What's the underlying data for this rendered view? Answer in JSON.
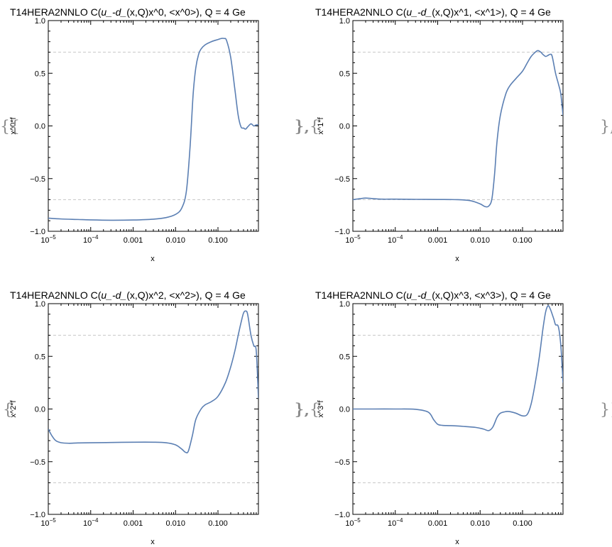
{
  "colors": {
    "series": "#5B7FB3",
    "refline": "#c8c8c8",
    "frame": "#000000"
  },
  "chart_data": [
    {
      "type": "line",
      "title": "T14HERA2NNLO C(u_-d_(x,Q)x^0, <x^0>), Q = 4 Ge",
      "title_prefix": "T14HERA2NNLO C(",
      "title_italic": "u_-d_",
      "title_suffix": "(x,Q)x^0, <x^0>), Q = 4 Ge",
      "xlabel": "x",
      "ylabel": "x^0*f",
      "xscale": "log",
      "xlim": [
        1e-05,
        0.9
      ],
      "ylim": [
        -1,
        1
      ],
      "xticks": [
        {
          "v": 1e-05,
          "label": "10",
          "exp": "−5"
        },
        {
          "v": 0.0001,
          "label": "10",
          "exp": "−4"
        },
        {
          "v": 0.001,
          "label": "0.001"
        },
        {
          "v": 0.01,
          "label": "0.010"
        },
        {
          "v": 0.1,
          "label": "0.100"
        }
      ],
      "yticks": [
        {
          "v": 1,
          "label": "1.0"
        },
        {
          "v": 0.5,
          "label": "0.5"
        },
        {
          "v": 0,
          "label": "0.0"
        },
        {
          "v": -0.5,
          "label": "−0.5"
        },
        {
          "v": -1,
          "label": "−1.0"
        }
      ],
      "reference_lines": [
        0.7,
        -0.7
      ],
      "left_brace": "{{",
      "right_brace": "},",
      "series": [
        {
          "x": [
            1e-05,
            2e-05,
            5e-05,
            0.0001,
            0.0003,
            0.001,
            0.003,
            0.006,
            0.01,
            0.014,
            0.018,
            0.022,
            0.026,
            0.03,
            0.035,
            0.04,
            0.05,
            0.07,
            0.1,
            0.12,
            0.14,
            0.16,
            0.2,
            0.25,
            0.3,
            0.35,
            0.4,
            0.45,
            0.5,
            0.6,
            0.7,
            0.8,
            0.9
          ],
          "y": [
            -0.875,
            -0.883,
            -0.888,
            -0.892,
            -0.895,
            -0.893,
            -0.885,
            -0.87,
            -0.84,
            -0.78,
            -0.62,
            -0.2,
            0.3,
            0.55,
            0.68,
            0.73,
            0.77,
            0.8,
            0.82,
            0.83,
            0.83,
            0.81,
            0.65,
            0.35,
            0.1,
            -0.01,
            -0.02,
            -0.03,
            -0.01,
            0.02,
            0.0,
            0.01,
            0.01
          ]
        }
      ]
    },
    {
      "type": "line",
      "title": "T14HERA2NNLO C(u_-d_(x,Q)x^1, <x^1>), Q = 4 Ge",
      "title_prefix": "T14HERA2NNLO C(",
      "title_italic": "u_-d_",
      "title_suffix": "(x,Q)x^1, <x^1>), Q = 4 Ge",
      "xlabel": "x",
      "ylabel": "x^1*f",
      "xscale": "log",
      "xlim": [
        1e-05,
        0.9
      ],
      "ylim": [
        -1,
        1
      ],
      "xticks": [
        {
          "v": 1e-05,
          "label": "10",
          "exp": "−5"
        },
        {
          "v": 0.0001,
          "label": "10",
          "exp": "−4"
        },
        {
          "v": 0.001,
          "label": "0.001"
        },
        {
          "v": 0.01,
          "label": "0.010"
        },
        {
          "v": 0.1,
          "label": "0.100"
        }
      ],
      "yticks": [
        {
          "v": 1,
          "label": "1.0"
        },
        {
          "v": 0.5,
          "label": "0.5"
        },
        {
          "v": 0,
          "label": "0.0"
        },
        {
          "v": -0.5,
          "label": "−0.5"
        },
        {
          "v": -1,
          "label": "−1.0"
        }
      ],
      "reference_lines": [
        0.7,
        -0.7
      ],
      "left_brace": "},{",
      "right_brace": "},",
      "series": [
        {
          "x": [
            1e-05,
            1.5e-05,
            2e-05,
            3e-05,
            5e-05,
            0.0001,
            0.0003,
            0.001,
            0.003,
            0.006,
            0.01,
            0.013,
            0.016,
            0.019,
            0.022,
            0.025,
            0.03,
            0.04,
            0.05,
            0.07,
            0.1,
            0.13,
            0.16,
            0.2,
            0.23,
            0.27,
            0.3,
            0.35,
            0.4,
            0.45,
            0.5,
            0.6,
            0.7,
            0.8,
            0.9
          ],
          "y": [
            -0.7,
            -0.69,
            -0.685,
            -0.69,
            -0.695,
            -0.695,
            -0.697,
            -0.698,
            -0.7,
            -0.71,
            -0.74,
            -0.765,
            -0.76,
            -0.69,
            -0.45,
            -0.15,
            0.1,
            0.3,
            0.38,
            0.45,
            0.52,
            0.6,
            0.66,
            0.7,
            0.715,
            0.7,
            0.68,
            0.66,
            0.67,
            0.68,
            0.66,
            0.5,
            0.4,
            0.3,
            0.1
          ]
        }
      ]
    },
    {
      "type": "line",
      "title": "T14HERA2NNLO C(u_-d_(x,Q)x^2, <x^2>), Q = 4 Ge",
      "title_prefix": "T14HERA2NNLO C(",
      "title_italic": "u_-d_",
      "title_suffix": "(x,Q)x^2, <x^2>), Q = 4 Ge",
      "xlabel": "x",
      "ylabel": "x^2*f",
      "xscale": "log",
      "xlim": [
        1e-05,
        0.9
      ],
      "ylim": [
        -1,
        1
      ],
      "xticks": [
        {
          "v": 1e-05,
          "label": "10",
          "exp": "−5"
        },
        {
          "v": 0.0001,
          "label": "10",
          "exp": "−4"
        },
        {
          "v": 0.001,
          "label": "0.001"
        },
        {
          "v": 0.01,
          "label": "0.010"
        },
        {
          "v": 0.1,
          "label": "0.100"
        }
      ],
      "yticks": [
        {
          "v": 1,
          "label": "1.0"
        },
        {
          "v": 0.5,
          "label": "0.5"
        },
        {
          "v": 0,
          "label": "0.0"
        },
        {
          "v": -0.5,
          "label": "−0.5"
        },
        {
          "v": -1,
          "label": "−1.0"
        }
      ],
      "reference_lines": [
        0.7,
        -0.7
      ],
      "left_brace": "{",
      "right_brace": "},",
      "series": [
        {
          "x": [
            1e-05,
            1.2e-05,
            1.5e-05,
            2e-05,
            3e-05,
            5e-05,
            0.0001,
            0.0003,
            0.001,
            0.003,
            0.006,
            0.01,
            0.014,
            0.017,
            0.02,
            0.025,
            0.03,
            0.04,
            0.05,
            0.07,
            0.1,
            0.15,
            0.2,
            0.25,
            0.3,
            0.35,
            0.4,
            0.45,
            0.5,
            0.6,
            0.7,
            0.8,
            0.9
          ],
          "y": [
            -0.19,
            -0.25,
            -0.3,
            -0.32,
            -0.325,
            -0.322,
            -0.32,
            -0.318,
            -0.315,
            -0.315,
            -0.32,
            -0.34,
            -0.38,
            -0.41,
            -0.4,
            -0.25,
            -0.1,
            0.0,
            0.04,
            0.07,
            0.12,
            0.25,
            0.4,
            0.55,
            0.7,
            0.82,
            0.91,
            0.93,
            0.9,
            0.7,
            0.6,
            0.55,
            0.1
          ]
        }
      ]
    },
    {
      "type": "line",
      "title": "T14HERA2NNLO C(u_-d_(x,Q)x^3, <x^3>), Q = 4 Ge",
      "title_prefix": "T14HERA2NNLO C(",
      "title_italic": "u_-d_",
      "title_suffix": "(x,Q)x^3, <x^3>), Q = 4 Ge",
      "xlabel": "x",
      "ylabel": "x^3*f",
      "xscale": "log",
      "xlim": [
        1e-05,
        0.9
      ],
      "ylim": [
        -1,
        1
      ],
      "xticks": [
        {
          "v": 1e-05,
          "label": "10",
          "exp": "−5"
        },
        {
          "v": 0.0001,
          "label": "10",
          "exp": "−4"
        },
        {
          "v": 0.001,
          "label": "0.001"
        },
        {
          "v": 0.01,
          "label": "0.010"
        },
        {
          "v": 0.1,
          "label": "0.100"
        }
      ],
      "yticks": [
        {
          "v": 1,
          "label": "1.0"
        },
        {
          "v": 0.5,
          "label": "0.5"
        },
        {
          "v": 0,
          "label": "0.0"
        },
        {
          "v": -0.5,
          "label": "−0.5"
        },
        {
          "v": -1,
          "label": "−1.0"
        }
      ],
      "reference_lines": [
        0.7,
        -0.7
      ],
      "left_brace": "},{",
      "right_brace": "}}",
      "series": [
        {
          "x": [
            1e-05,
            3e-05,
            0.0001,
            0.0003,
            0.0006,
            0.0008,
            0.001,
            0.0013,
            0.002,
            0.004,
            0.008,
            0.012,
            0.016,
            0.02,
            0.025,
            0.03,
            0.04,
            0.05,
            0.07,
            0.1,
            0.13,
            0.16,
            0.2,
            0.25,
            0.3,
            0.35,
            0.4,
            0.45,
            0.5,
            0.55,
            0.6,
            0.7,
            0.8,
            0.9
          ],
          "y": [
            0.0,
            0.0,
            0.0,
            -0.003,
            -0.03,
            -0.1,
            -0.145,
            -0.155,
            -0.158,
            -0.165,
            -0.175,
            -0.19,
            -0.205,
            -0.17,
            -0.08,
            -0.04,
            -0.025,
            -0.025,
            -0.04,
            -0.065,
            -0.05,
            0.05,
            0.25,
            0.5,
            0.75,
            0.92,
            0.98,
            0.95,
            0.9,
            0.85,
            0.8,
            0.78,
            0.6,
            0.25
          ]
        }
      ]
    }
  ]
}
